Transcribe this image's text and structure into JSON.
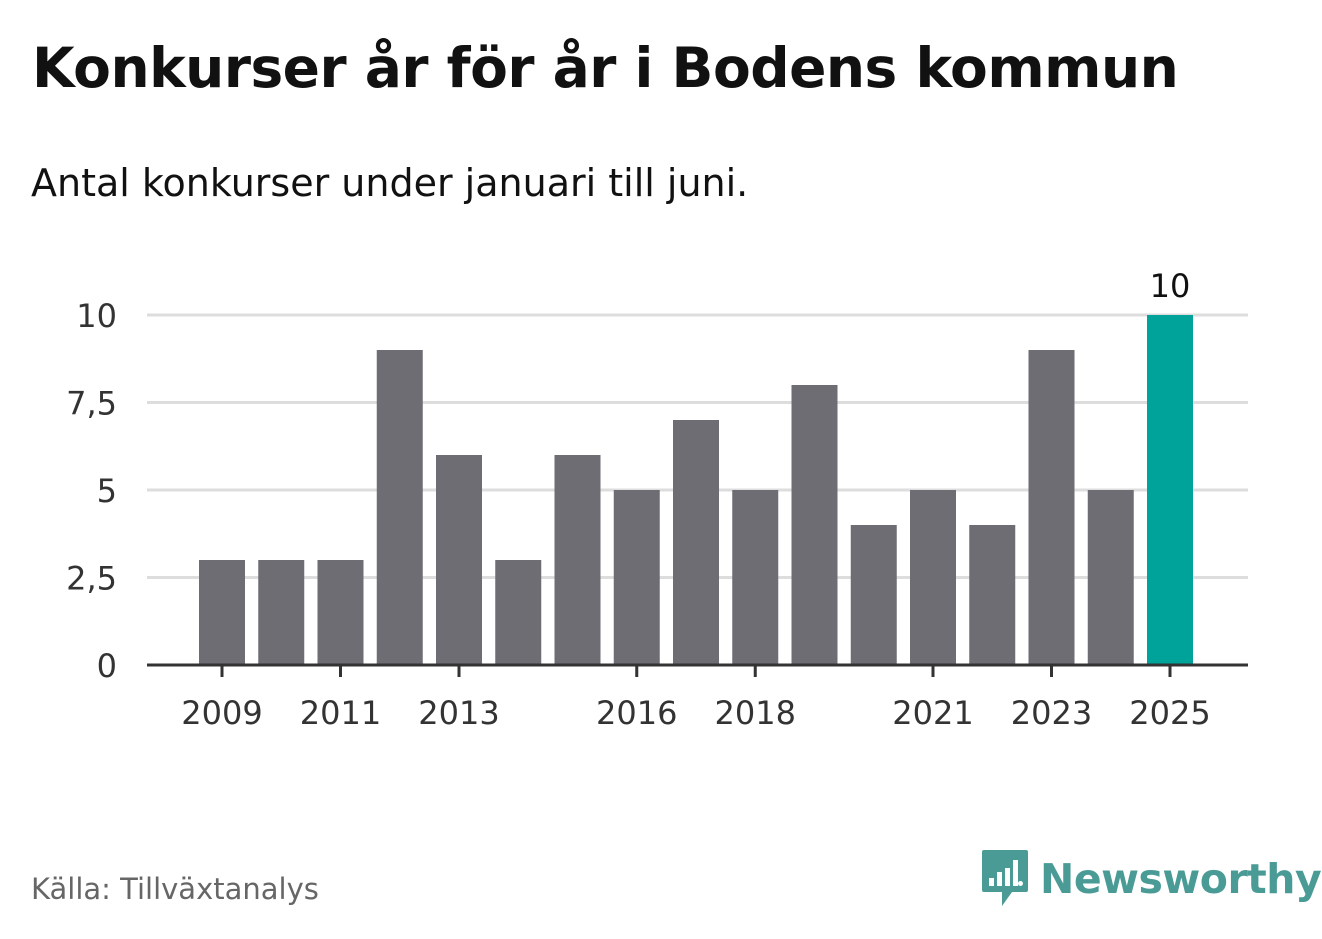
{
  "title": "Konkurser år för år i Bodens kommun",
  "subtitle": "Antal konkurser under januari till juni.",
  "source": "Källa: Tillväxtanalys",
  "brand": {
    "name": "Newsworthy",
    "icon": "newsworthy-logo-icon",
    "color": "#4a9b95"
  },
  "colors": {
    "bar": "#6e6d74",
    "highlight": "#00a39a",
    "grid": "#dddddd",
    "axis": "#333333"
  },
  "chart_data": {
    "type": "bar",
    "categories": [
      "2009",
      "2010",
      "2011",
      "2012",
      "2013",
      "2014",
      "2015",
      "2016",
      "2017",
      "2018",
      "2019",
      "2020",
      "2021",
      "2022",
      "2023",
      "2024",
      "2025"
    ],
    "values": [
      3,
      3,
      3,
      9,
      6,
      3,
      6,
      5,
      7,
      5,
      8,
      4,
      5,
      4,
      9,
      5,
      10
    ],
    "highlight_index": 16,
    "ylim": [
      0,
      10
    ],
    "yticks": [
      0,
      2.5,
      5,
      7.5,
      10
    ],
    "ytick_labels": [
      "0",
      "2,5",
      "5",
      "7,5",
      "10"
    ],
    "xtick_labels": [
      "2009",
      "2011",
      "2013",
      "2016",
      "2018",
      "2021",
      "2023",
      "2025"
    ],
    "data_labels": [
      {
        "category": "2025",
        "text": "10"
      }
    ],
    "grid": true,
    "legend": "none",
    "xlabel": "",
    "ylabel": ""
  }
}
